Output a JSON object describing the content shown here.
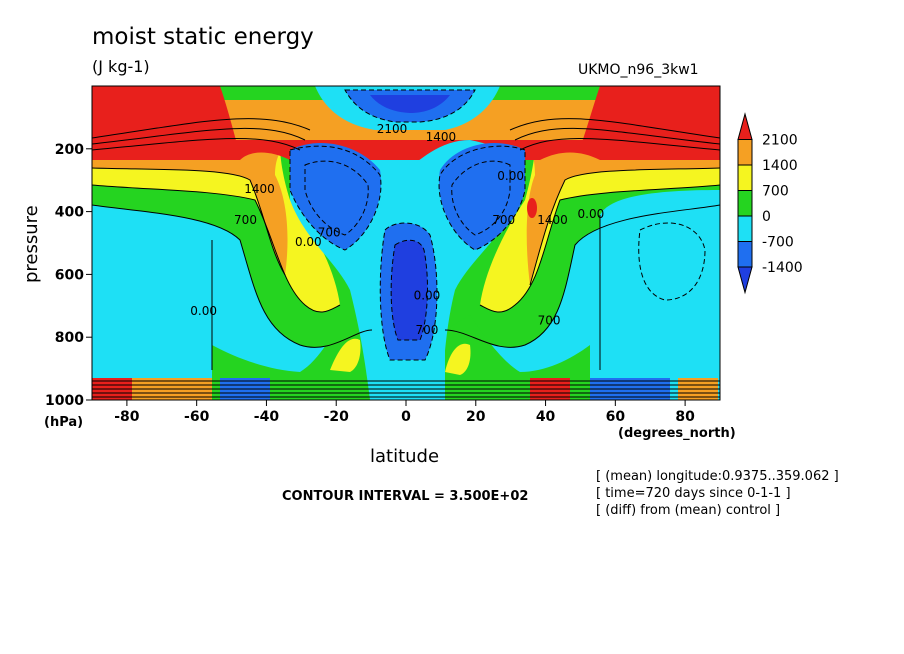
{
  "chart_data": {
    "type": "contour",
    "title": "moist static energy",
    "units": "(J kg-1)",
    "model": "UKMO_n96_3kw1",
    "xlabel": "latitude",
    "xunit": "(degrees_north)",
    "ylabel": "pressure",
    "yunit": "(hPa)",
    "xlim": [
      -90,
      90
    ],
    "ylim": [
      1000,
      0
    ],
    "x_ticks": [
      -80,
      -60,
      -40,
      -20,
      0,
      20,
      40,
      60,
      80
    ],
    "y_ticks": [
      200,
      400,
      600,
      800,
      1000
    ],
    "colorbar": {
      "levels": [
        2100,
        1400,
        700,
        0,
        -700,
        -1400
      ],
      "colors": [
        "#e8201c",
        "#f5a023",
        "#f5f520",
        "#25d420",
        "#1ee0f5",
        "#1f6ff0",
        "#1f3fe0"
      ]
    },
    "contour_labels": [
      {
        "text": "2100",
        "lat": -4,
        "p": 150
      },
      {
        "text": "1400",
        "lat": 10,
        "p": 175
      },
      {
        "text": "1400",
        "lat": -42,
        "p": 340
      },
      {
        "text": "1400",
        "lat": 42,
        "p": 440
      },
      {
        "text": "700",
        "lat": -46,
        "p": 440
      },
      {
        "text": "700",
        "lat": -22,
        "p": 480
      },
      {
        "text": "700",
        "lat": 28,
        "p": 440
      },
      {
        "text": "700",
        "lat": 41,
        "p": 760
      },
      {
        "text": "700",
        "lat": 6,
        "p": 790
      },
      {
        "text": "0.00",
        "lat": -28,
        "p": 510
      },
      {
        "text": "0.00",
        "lat": -58,
        "p": 730
      },
      {
        "text": "0.00",
        "lat": 53,
        "p": 420
      },
      {
        "text": "0.00",
        "lat": 30,
        "p": 300
      },
      {
        "text": "0.00",
        "lat": 6,
        "p": 680
      }
    ],
    "contour_interval": "CONTOUR INTERVAL = 3.500E+02",
    "annotations": [
      "[ (mean) longitude:0.9375..359.062 ]",
      "[ time=720 days since 0-1-1 ]",
      "[ (diff) from (mean) control ]"
    ]
  }
}
